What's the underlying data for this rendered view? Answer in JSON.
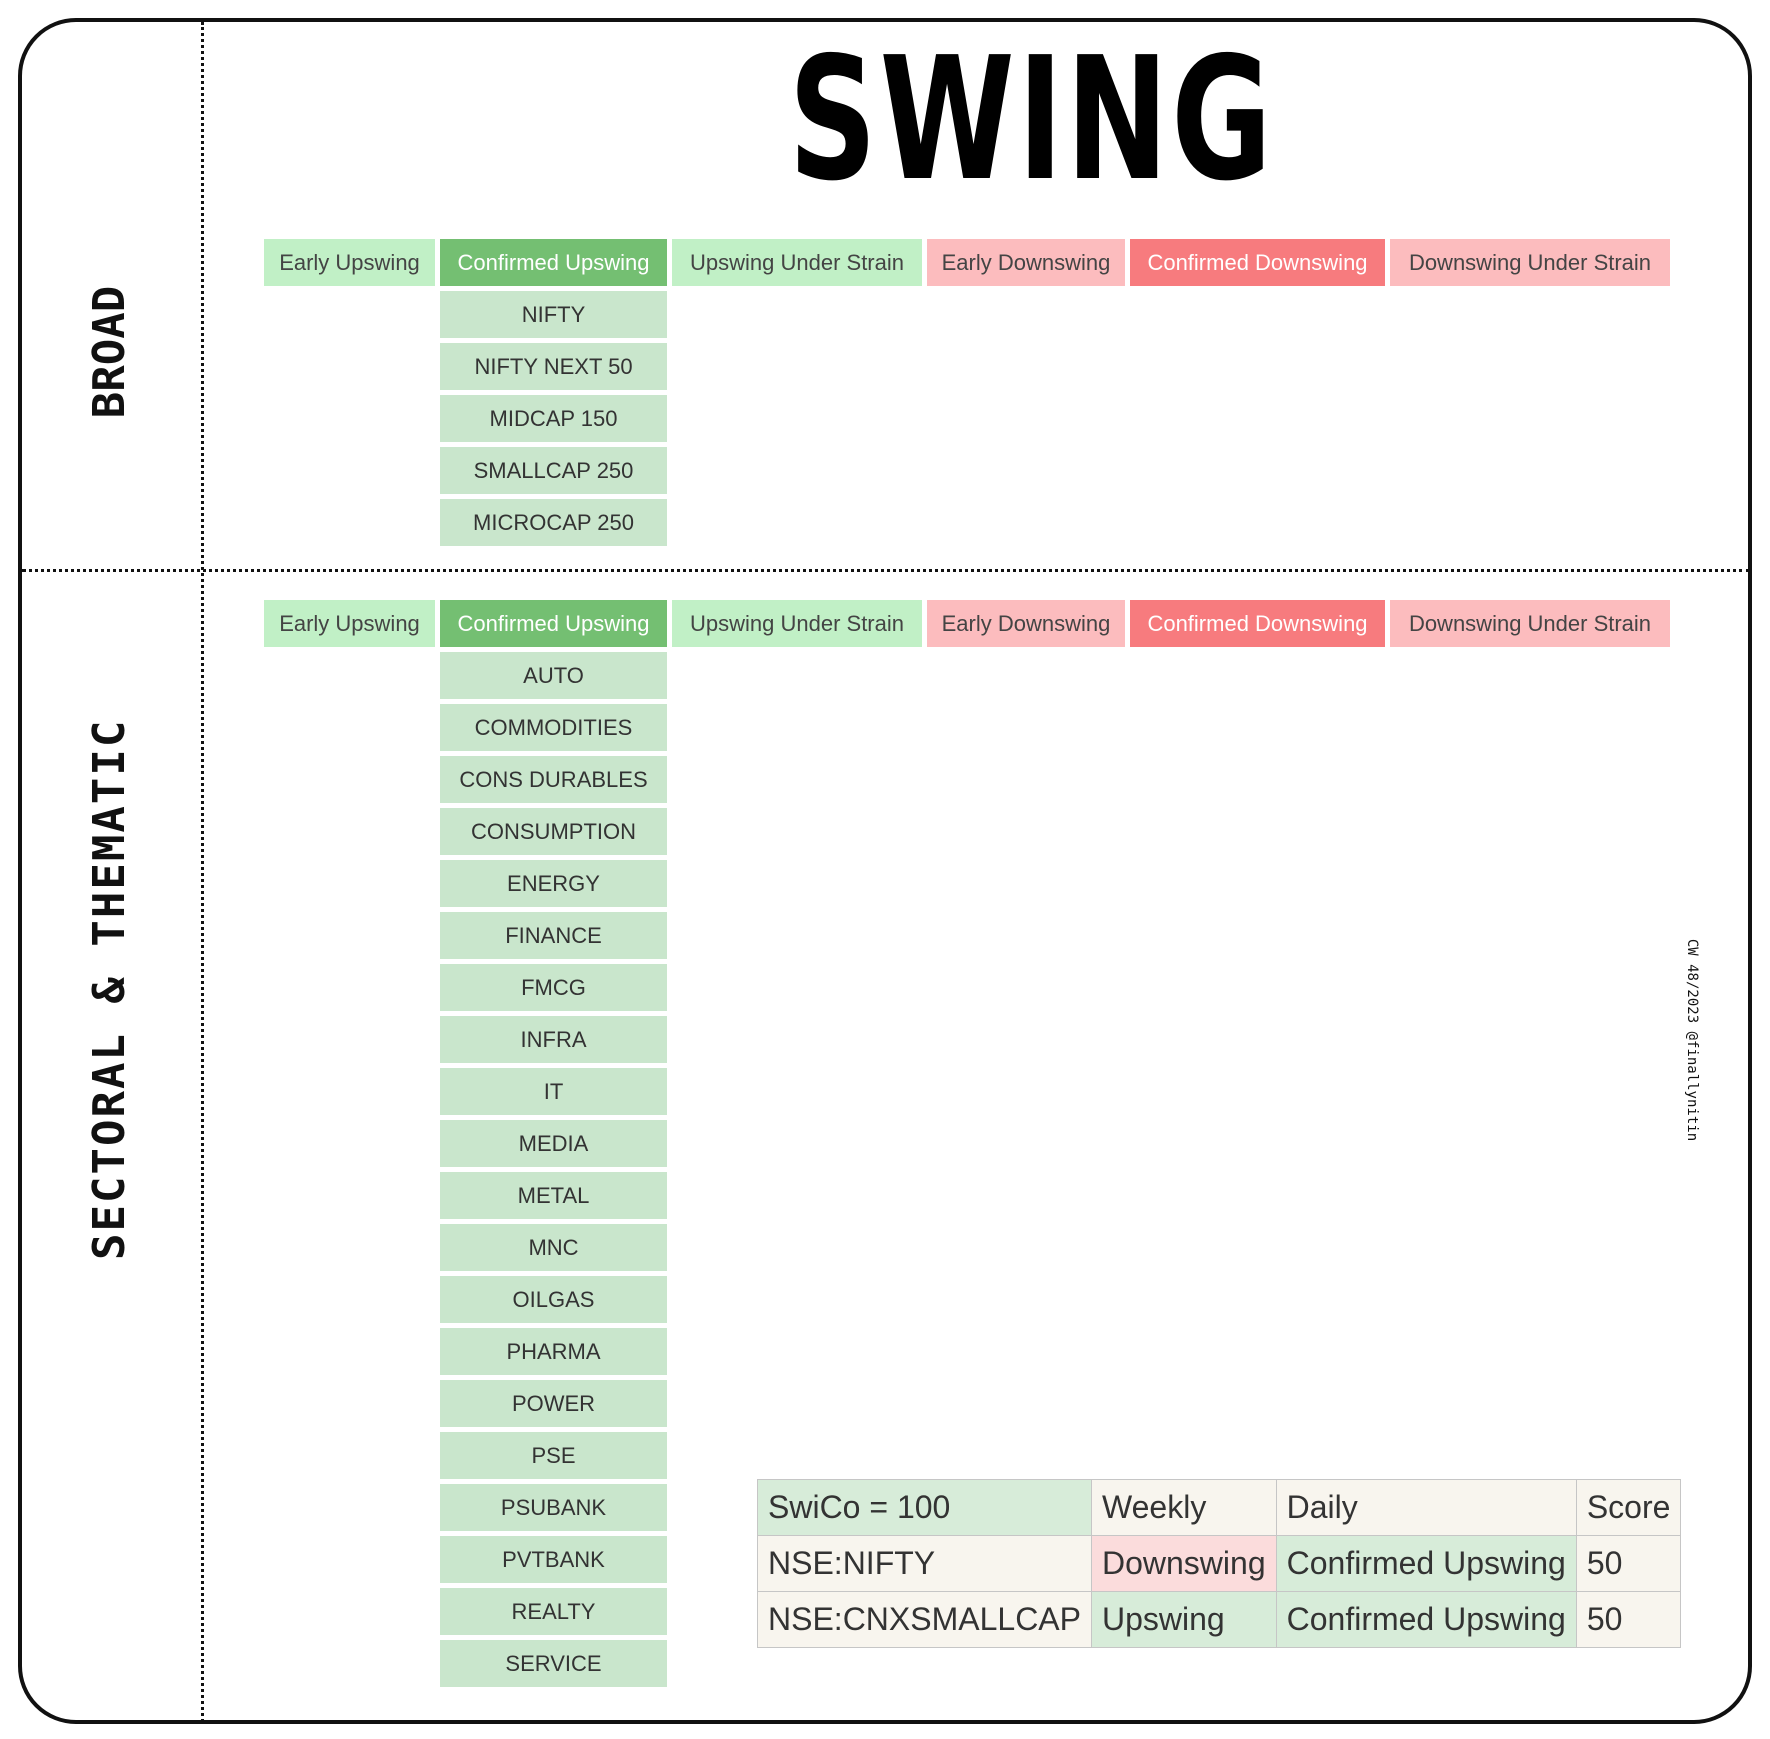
{
  "title": "SWING",
  "watermark": "CW 48/2023 @finallynitin",
  "colors": {
    "early_upswing": "#c1f0c6",
    "confirmed_upswing": "#74bf72",
    "upswing_under_strain": "#c1f0c6",
    "early_downswing": "#fcbcbe",
    "confirmed_downswing": "#f77b7e",
    "downswing_under_strain": "#fcbcbe",
    "item_cell": "#c9e6cc"
  },
  "headers": [
    "Early Upswing",
    "Confirmed Upswing",
    "Upswing Under Strain",
    "Early Downswing",
    "Confirmed Downswing",
    "Downswing Under Strain"
  ],
  "broad": {
    "label": "BROAD",
    "confirmed_upswing": [
      "NIFTY",
      "NIFTY NEXT 50",
      "MIDCAP 150",
      "SMALLCAP 250",
      "MICROCAP 250"
    ]
  },
  "sectoral": {
    "label": "SECTORAL & THEMATIC",
    "confirmed_upswing": [
      "AUTO",
      "COMMODITIES",
      "CONS DURABLES",
      "CONSUMPTION",
      "ENERGY",
      "FINANCE",
      "FMCG",
      "INFRA",
      "IT",
      "MEDIA",
      "METAL",
      "MNC",
      "OILGAS",
      "PHARMA",
      "POWER",
      "PSE",
      "PSUBANK",
      "PVTBANK",
      "REALTY",
      "SERVICE"
    ]
  },
  "swico_table": {
    "header": [
      "SwiCo = 100",
      "Weekly",
      "Daily",
      "Score"
    ],
    "rows": [
      [
        "NSE:NIFTY",
        "Downswing",
        "Confirmed Upswing",
        "50"
      ],
      [
        "NSE:CNXSMALLCAP",
        "Upswing",
        "Confirmed Upswing",
        "50"
      ]
    ]
  }
}
